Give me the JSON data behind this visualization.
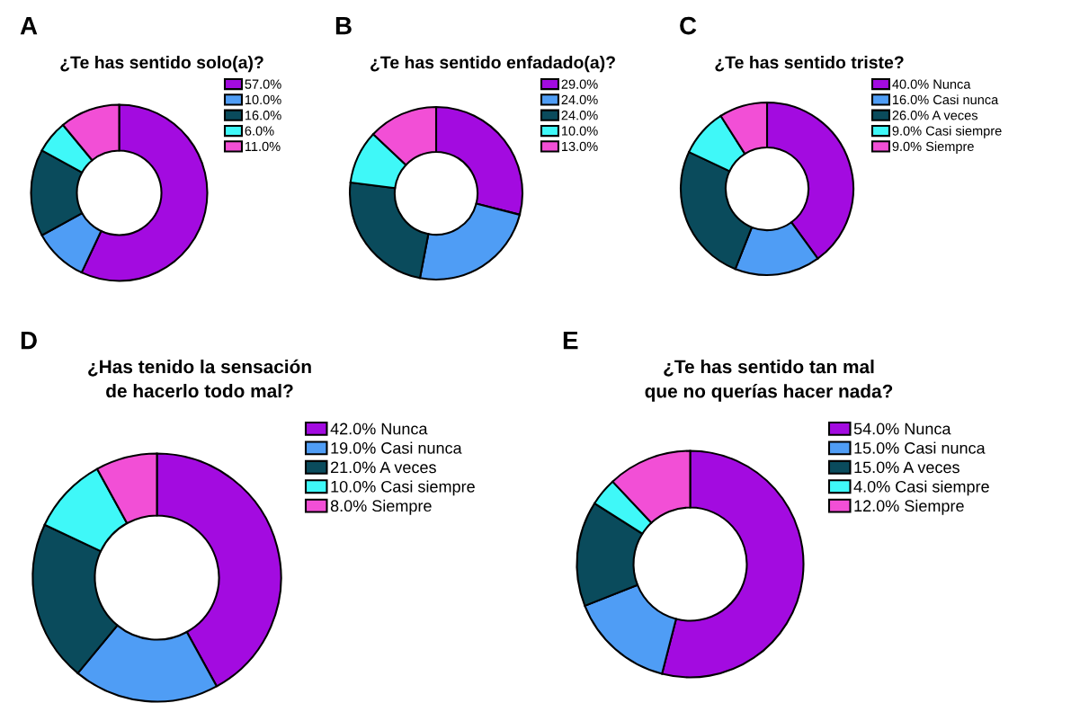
{
  "chart_data": [
    {
      "type": "donut",
      "title": "¿Te has sentido solo(a)?",
      "annotations": [
        "A"
      ],
      "categories": [
        "57.0%",
        "10.0%",
        "16.0%",
        "6.0%",
        "11.0%"
      ],
      "values": [
        57,
        10,
        16,
        6,
        11
      ],
      "colors": [
        "#a30be0",
        "#4f9df5",
        "#0a4b5c",
        "#3ff8f8",
        "#f24fd6"
      ],
      "legend": "right"
    },
    {
      "type": "donut",
      "title": "¿Te has sentido enfadado(a)?",
      "annotations": [
        "B"
      ],
      "categories": [
        "29.0%",
        "24.0%",
        "24.0%",
        "10.0%",
        "13.0%"
      ],
      "values": [
        29,
        24,
        24,
        10,
        13
      ],
      "colors": [
        "#a30be0",
        "#4f9df5",
        "#0a4b5c",
        "#3ff8f8",
        "#f24fd6"
      ],
      "legend": "right"
    },
    {
      "type": "donut",
      "title": "¿Te has sentido triste?",
      "annotations": [
        "C"
      ],
      "categories": [
        "Nunca",
        "Casi nunca",
        "A veces",
        "Casi siempre",
        "Siempre"
      ],
      "values": [
        40,
        16,
        26,
        9,
        9
      ],
      "value_labels": [
        "40.0%",
        "16.0%",
        "26.0%",
        "9.0%",
        "9.0%"
      ],
      "colors": [
        "#a30be0",
        "#4f9df5",
        "#0a4b5c",
        "#3ff8f8",
        "#f24fd6"
      ],
      "legend": "right"
    },
    {
      "type": "donut",
      "title": "¿Has tenido la sensación\nde hacerlo todo mal?",
      "annotations": [
        "D"
      ],
      "categories": [
        "Nunca",
        "Casi nunca",
        "A veces",
        "Casi siempre",
        "Siempre"
      ],
      "values": [
        42,
        19,
        21,
        10,
        8
      ],
      "value_labels": [
        "42.0%",
        "19.0%",
        "21.0%",
        "10.0%",
        "8.0%"
      ],
      "colors": [
        "#a30be0",
        "#4f9df5",
        "#0a4b5c",
        "#3ff8f8",
        "#f24fd6"
      ],
      "legend": "right"
    },
    {
      "type": "donut",
      "title": "¿Te has sentido tan mal\nque no querías hacer nada?",
      "annotations": [
        "E"
      ],
      "categories": [
        "Nunca",
        "Casi nunca",
        "A veces",
        "Casi siempre",
        "Siempre"
      ],
      "values": [
        54,
        15,
        15,
        4,
        12
      ],
      "value_labels": [
        "54.0%",
        "15.0%",
        "15.0%",
        "4.0%",
        "12.0%"
      ],
      "colors": [
        "#a30be0",
        "#4f9df5",
        "#0a4b5c",
        "#3ff8f8",
        "#f24fd6"
      ],
      "legend": "right"
    }
  ]
}
